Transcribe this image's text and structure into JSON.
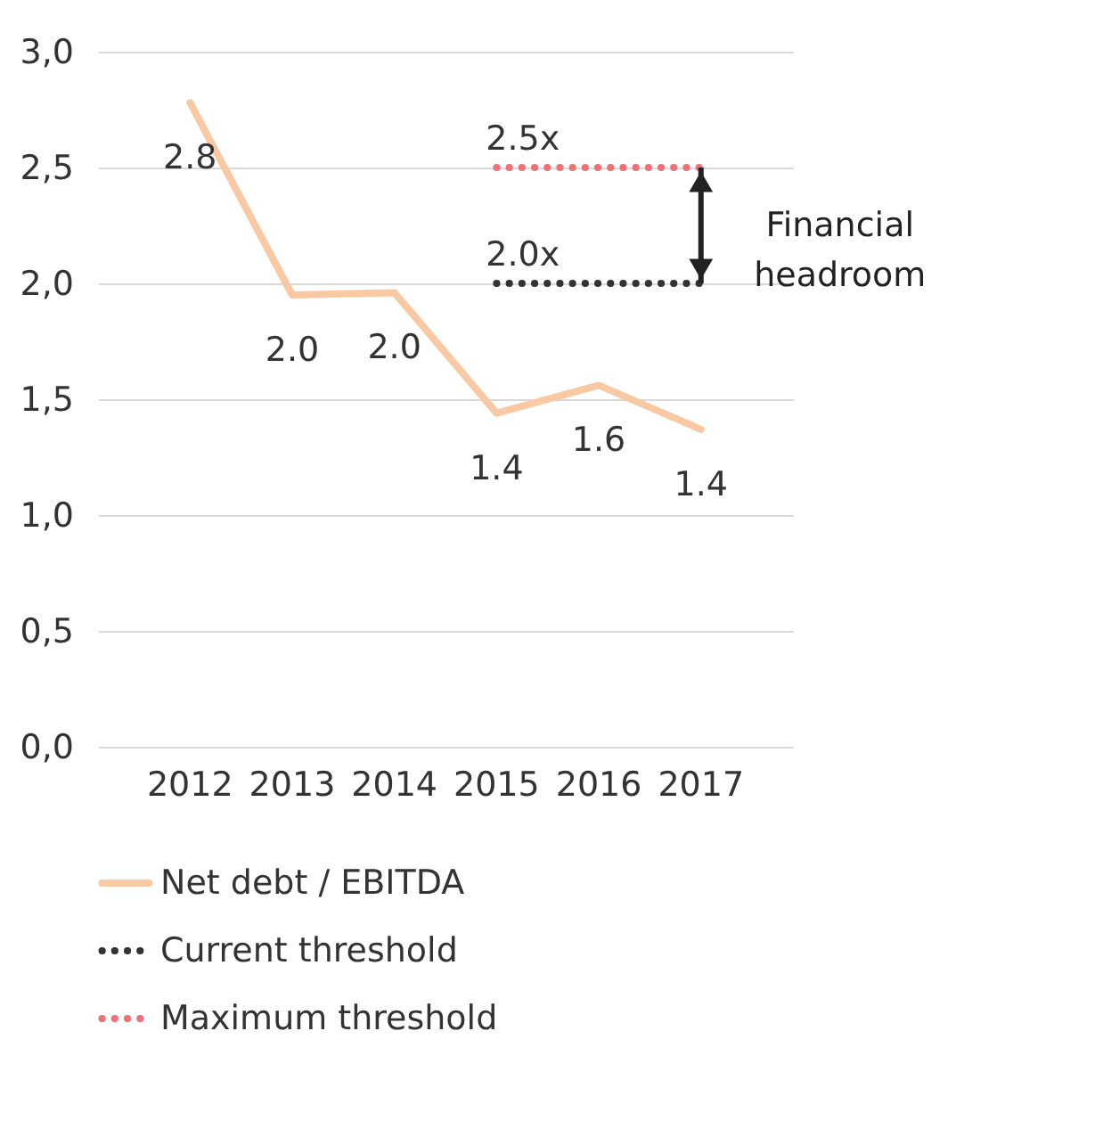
{
  "chart_data": {
    "type": "line",
    "categories": [
      "2012",
      "2013",
      "2014",
      "2015",
      "2016",
      "2017"
    ],
    "series": [
      {
        "name": "Net debt / EBITDA",
        "color": "#f8c9a2",
        "line_style": "solid",
        "values": [
          2.78,
          1.95,
          1.96,
          1.44,
          1.56,
          1.37
        ],
        "value_labels": [
          "2.8",
          "2.0",
          "2.0",
          "1.4",
          "1.6",
          "1.4"
        ]
      },
      {
        "name": "Current threshold",
        "color": "#333333",
        "line_style": "dotted",
        "values": [
          null,
          null,
          null,
          2.0,
          2.0,
          2.0
        ]
      },
      {
        "name": "Maximum threshold",
        "color": "#f0707a",
        "line_style": "dotted",
        "values": [
          null,
          null,
          null,
          2.5,
          2.5,
          2.5
        ]
      }
    ],
    "ylim": [
      0,
      3
    ],
    "yticks": [
      {
        "value": 0,
        "label": "0,0"
      },
      {
        "value": 0.5,
        "label": "0,5"
      },
      {
        "value": 1,
        "label": "1,0"
      },
      {
        "value": 1.5,
        "label": "1,5"
      },
      {
        "value": 2,
        "label": "2,0"
      },
      {
        "value": 2.5,
        "label": "2,5"
      },
      {
        "value": 3,
        "label": "3,0"
      }
    ],
    "grid": "y",
    "legend": "bottom",
    "marker": "none",
    "annotations": [
      {
        "text": "2.5x",
        "x": "2015",
        "y": 2.5
      },
      {
        "text": "2.0x",
        "x": "2015",
        "y": 2.0
      },
      "Financial headroom"
    ]
  }
}
